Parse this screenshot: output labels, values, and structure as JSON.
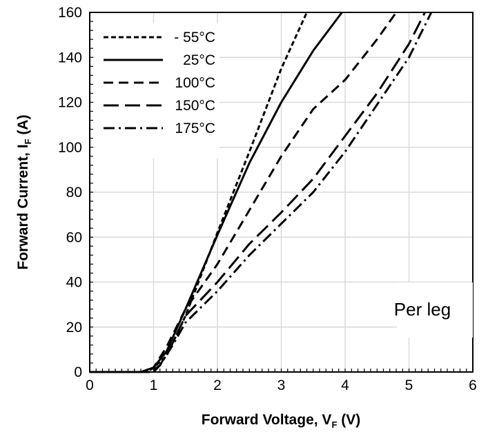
{
  "chart_data": {
    "type": "line",
    "xlabel_main": "Forward Voltage, V",
    "xlabel_sub": "F",
    "xlabel_unit": " (V)",
    "ylabel_main": "Forward Current, I",
    "ylabel_sub": "F",
    "ylabel_unit": " (A)",
    "xlim": [
      0,
      6
    ],
    "ylim": [
      0,
      160
    ],
    "xticks": [
      "0",
      "1",
      "2",
      "3",
      "4",
      "5",
      "6"
    ],
    "yticks": [
      "0",
      "20",
      "40",
      "60",
      "80",
      "100",
      "120",
      "140",
      "160"
    ],
    "grid": true,
    "legend_position": "top-left",
    "annotation": "Per leg",
    "series": [
      {
        "name": "- 55°C",
        "dash": "short-dash",
        "points": [
          [
            0,
            0
          ],
          [
            0.85,
            0
          ],
          [
            1.0,
            2
          ],
          [
            1.2,
            7
          ],
          [
            1.5,
            25
          ],
          [
            2.0,
            62
          ],
          [
            2.5,
            98
          ],
          [
            3.0,
            135
          ],
          [
            3.4,
            160
          ]
        ]
      },
      {
        "name": "25°C",
        "dash": "solid",
        "points": [
          [
            0,
            0
          ],
          [
            0.8,
            0
          ],
          [
            1.0,
            2
          ],
          [
            1.2,
            9
          ],
          [
            1.5,
            28
          ],
          [
            2.0,
            61
          ],
          [
            2.5,
            93
          ],
          [
            3.0,
            120
          ],
          [
            3.5,
            143
          ],
          [
            3.95,
            160
          ]
        ]
      },
      {
        "name": "100°C",
        "dash": "medium-dash",
        "points": [
          [
            0,
            0
          ],
          [
            0.9,
            0
          ],
          [
            1.0,
            2
          ],
          [
            1.2,
            11
          ],
          [
            1.5,
            28
          ],
          [
            2.0,
            48
          ],
          [
            2.5,
            72
          ],
          [
            3.0,
            96
          ],
          [
            3.5,
            117
          ],
          [
            4.0,
            130
          ],
          [
            4.5,
            148
          ],
          [
            4.8,
            160
          ]
        ]
      },
      {
        "name": "150°C",
        "dash": "long-dash",
        "points": [
          [
            0,
            0
          ],
          [
            0.95,
            0
          ],
          [
            1.1,
            3
          ],
          [
            1.3,
            13
          ],
          [
            1.5,
            25
          ],
          [
            2.0,
            40
          ],
          [
            2.5,
            57
          ],
          [
            3.0,
            71
          ],
          [
            3.5,
            86
          ],
          [
            4.0,
            105
          ],
          [
            4.5,
            124
          ],
          [
            5.0,
            146
          ],
          [
            5.25,
            160
          ]
        ]
      },
      {
        "name": "175°C",
        "dash": "dash-dot",
        "points": [
          [
            0,
            0
          ],
          [
            1.0,
            0
          ],
          [
            1.1,
            3
          ],
          [
            1.3,
            12
          ],
          [
            1.5,
            22
          ],
          [
            2.0,
            36
          ],
          [
            2.5,
            52
          ],
          [
            3.0,
            66
          ],
          [
            3.5,
            80
          ],
          [
            4.0,
            98
          ],
          [
            4.5,
            119
          ],
          [
            5.0,
            140
          ],
          [
            5.35,
            160
          ]
        ]
      }
    ]
  }
}
